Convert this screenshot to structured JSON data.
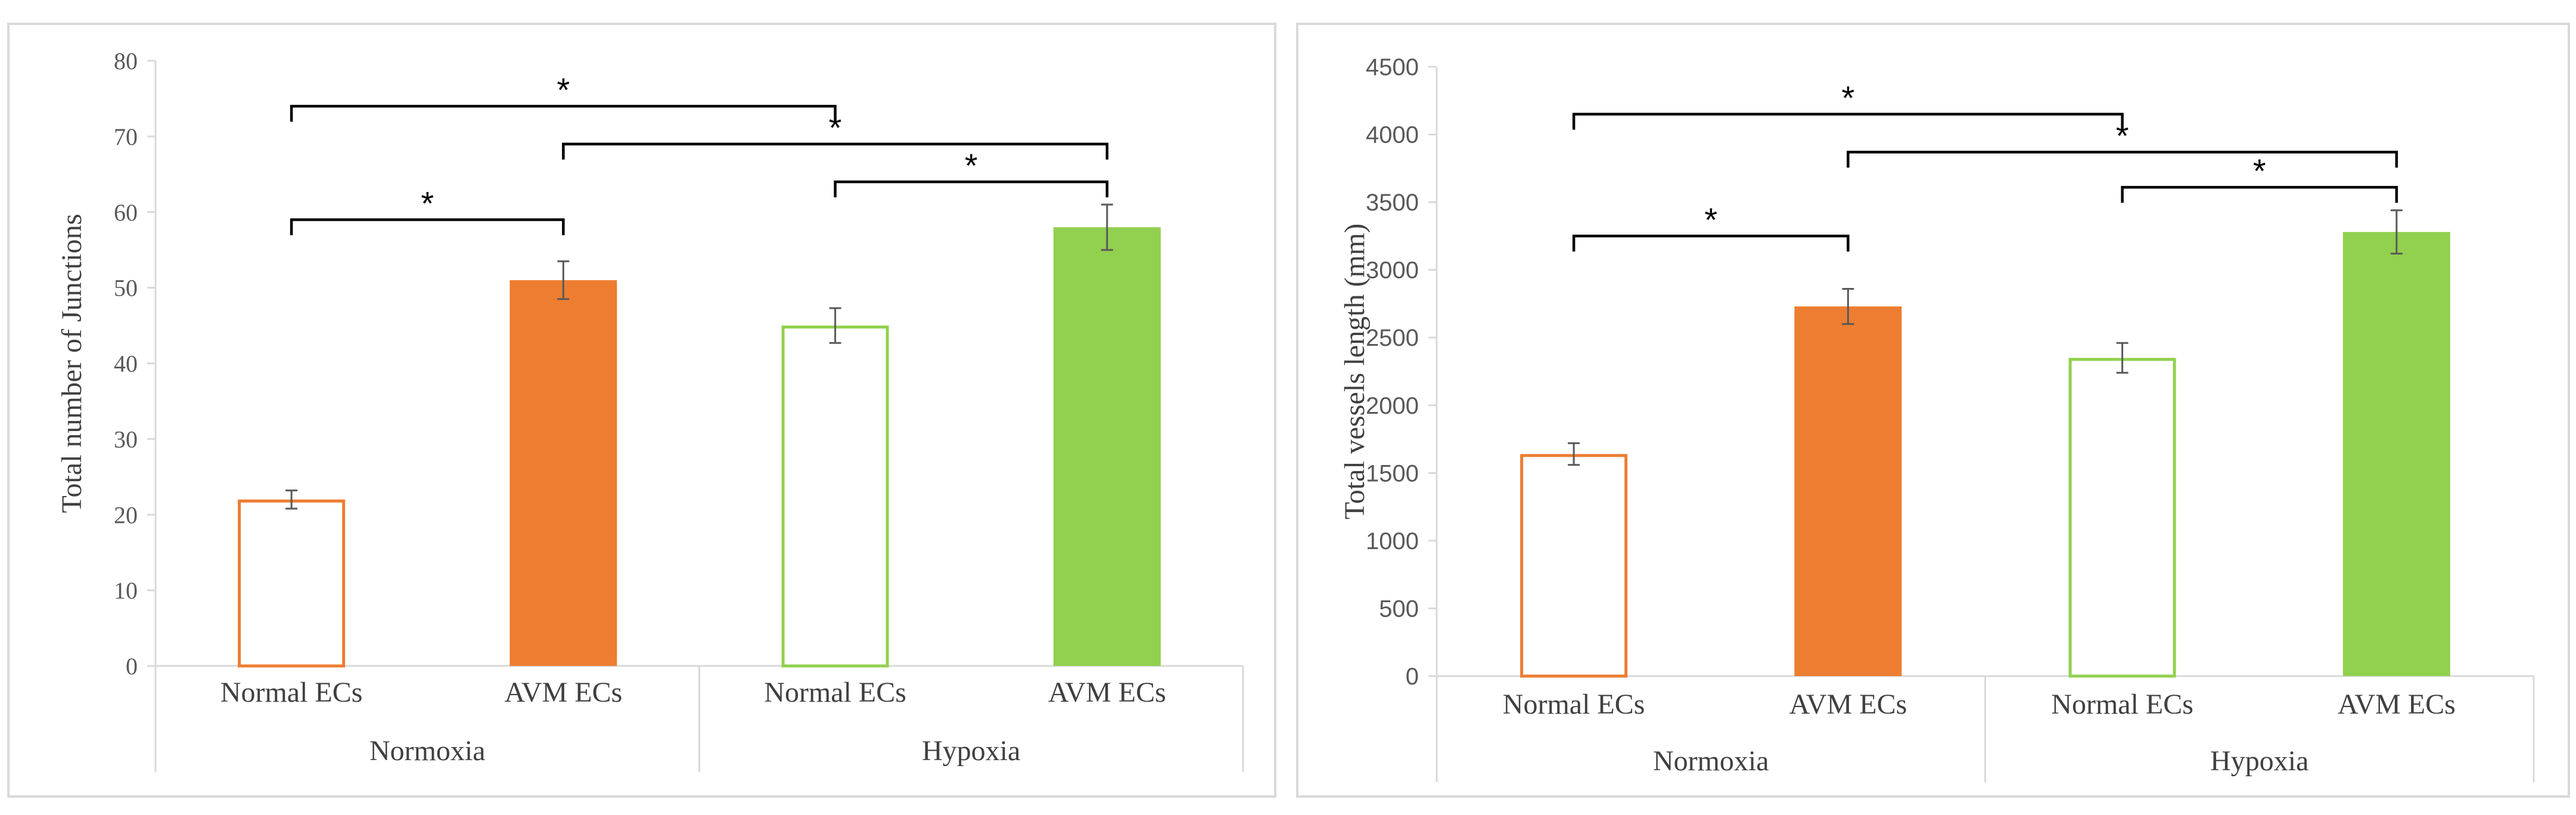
{
  "chart_data": [
    {
      "type": "bar",
      "ylabel": "Total number of Junctions",
      "ylim": [
        0,
        80
      ],
      "ytick_step": 10,
      "yticks": [
        "0",
        "10",
        "20",
        "30",
        "40",
        "50",
        "60",
        "70",
        "80"
      ],
      "groups": [
        "Normoxia",
        "Hypoxia"
      ],
      "categories": [
        "Normal ECs",
        "AVM ECs",
        "Normal ECs",
        "AVM ECs"
      ],
      "values": [
        22,
        51,
        45,
        58
      ],
      "errors": [
        1.2,
        2.5,
        2.3,
        3.0
      ],
      "styles": [
        "outline-orange",
        "solid-orange",
        "outline-green",
        "solid-green"
      ],
      "brackets": [
        {
          "from": 0,
          "to": 2,
          "y": 74,
          "label": "*"
        },
        {
          "from": 1,
          "to": 3,
          "y": 69,
          "label": "*"
        },
        {
          "from": 2,
          "to": 3,
          "y": 64,
          "label": "*"
        },
        {
          "from": 0,
          "to": 1,
          "y": 59,
          "label": "*"
        }
      ]
    },
    {
      "type": "bar",
      "ylabel": "Total vessels length (mm)",
      "ylim": [
        0,
        4500
      ],
      "ytick_step": 500,
      "yticks": [
        "0",
        "500",
        "1000",
        "1500",
        "2000",
        "2500",
        "3000",
        "3500",
        "4000",
        "4500"
      ],
      "groups": [
        "Normoxia",
        "Hypoxia"
      ],
      "categories": [
        "Normal ECs",
        "AVM ECs",
        "Normal ECs",
        "AVM ECs"
      ],
      "values": [
        1640,
        2730,
        2350,
        3280
      ],
      "errors": [
        80,
        130,
        110,
        160
      ],
      "styles": [
        "outline-orange",
        "solid-orange",
        "outline-green",
        "solid-green"
      ],
      "brackets": [
        {
          "from": 0,
          "to": 2,
          "y": 4150,
          "label": "*"
        },
        {
          "from": 1,
          "to": 3,
          "y": 3870,
          "label": "*"
        },
        {
          "from": 2,
          "to": 3,
          "y": 3610,
          "label": "*"
        },
        {
          "from": 0,
          "to": 1,
          "y": 3250,
          "label": "*"
        }
      ]
    }
  ],
  "colors": {
    "orange": "#ed7d31",
    "green": "#92d050",
    "axis": "#d9d9d9",
    "text": "#404040"
  }
}
